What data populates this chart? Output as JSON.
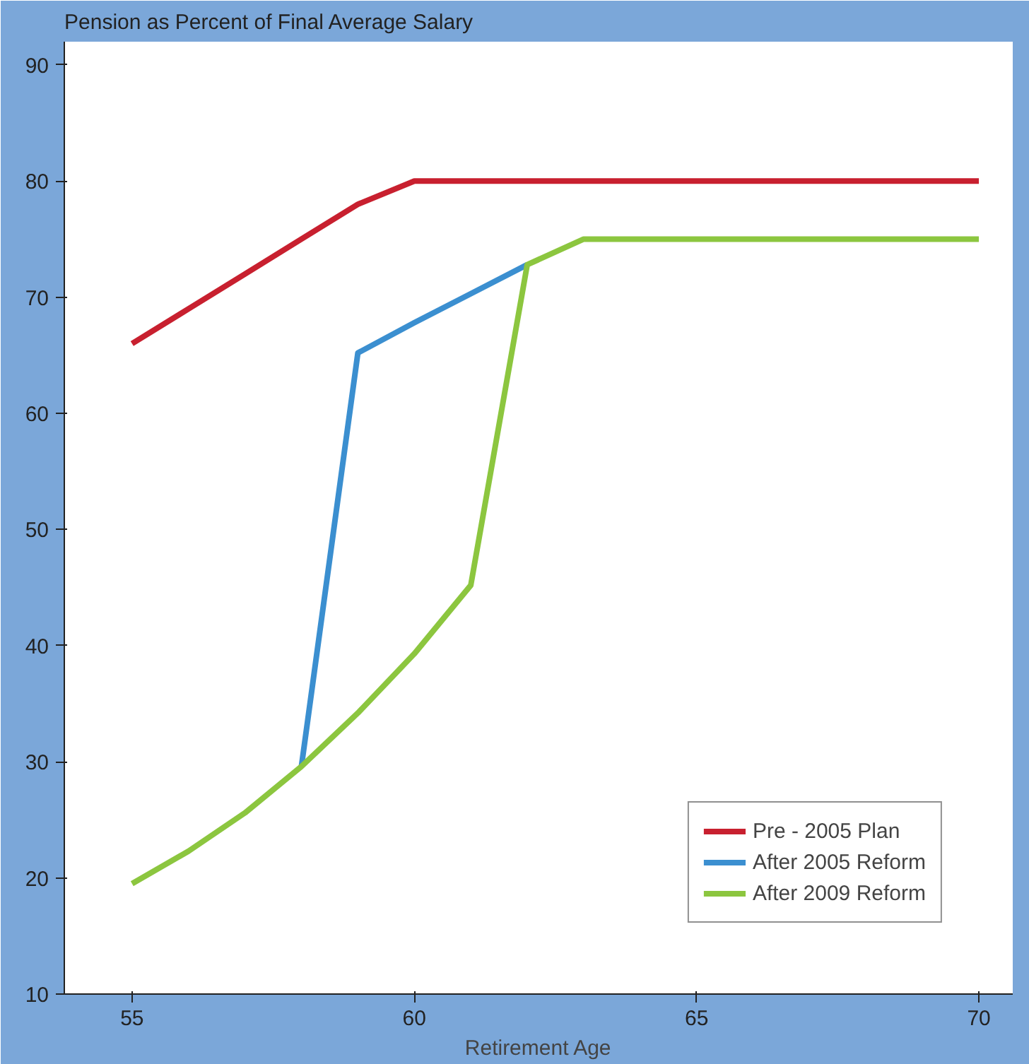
{
  "chart_data": {
    "type": "line",
    "title": "Pension as Percent of Final Average Salary",
    "xlabel": "Retirement Age",
    "x": [
      55,
      56,
      57,
      58,
      59,
      60,
      61,
      62,
      63,
      64,
      65,
      66,
      67,
      68,
      69,
      70
    ],
    "series": [
      {
        "name": "Pre - 2005 Plan",
        "color": "#c8202f",
        "values": [
          66,
          69,
          72,
          75,
          78,
          80,
          80,
          80,
          80,
          80,
          80,
          80,
          80,
          80,
          80,
          80
        ]
      },
      {
        "name": "After 2005 Reform",
        "color": "#3b8fd0",
        "values": [
          null,
          null,
          null,
          29.6,
          65.2,
          67.8,
          70.3,
          72.8,
          null,
          null,
          null,
          null,
          null,
          null,
          null,
          null
        ]
      },
      {
        "name": "After 2009 Reform",
        "color": "#8cc63f",
        "values": [
          19.5,
          22.3,
          25.6,
          29.6,
          34.2,
          39.3,
          45.2,
          72.8,
          75,
          75,
          75,
          75,
          75,
          75,
          75,
          75
        ]
      }
    ],
    "xlim": [
      53.8,
      70.6
    ],
    "ylim": [
      10,
      92
    ],
    "xticks": [
      55,
      60,
      65,
      70
    ],
    "yticks": [
      10,
      20,
      30,
      40,
      50,
      60,
      70,
      80,
      90
    ],
    "grid": false,
    "legend": "bottom right",
    "marker": "none",
    "line_style": "solid"
  }
}
